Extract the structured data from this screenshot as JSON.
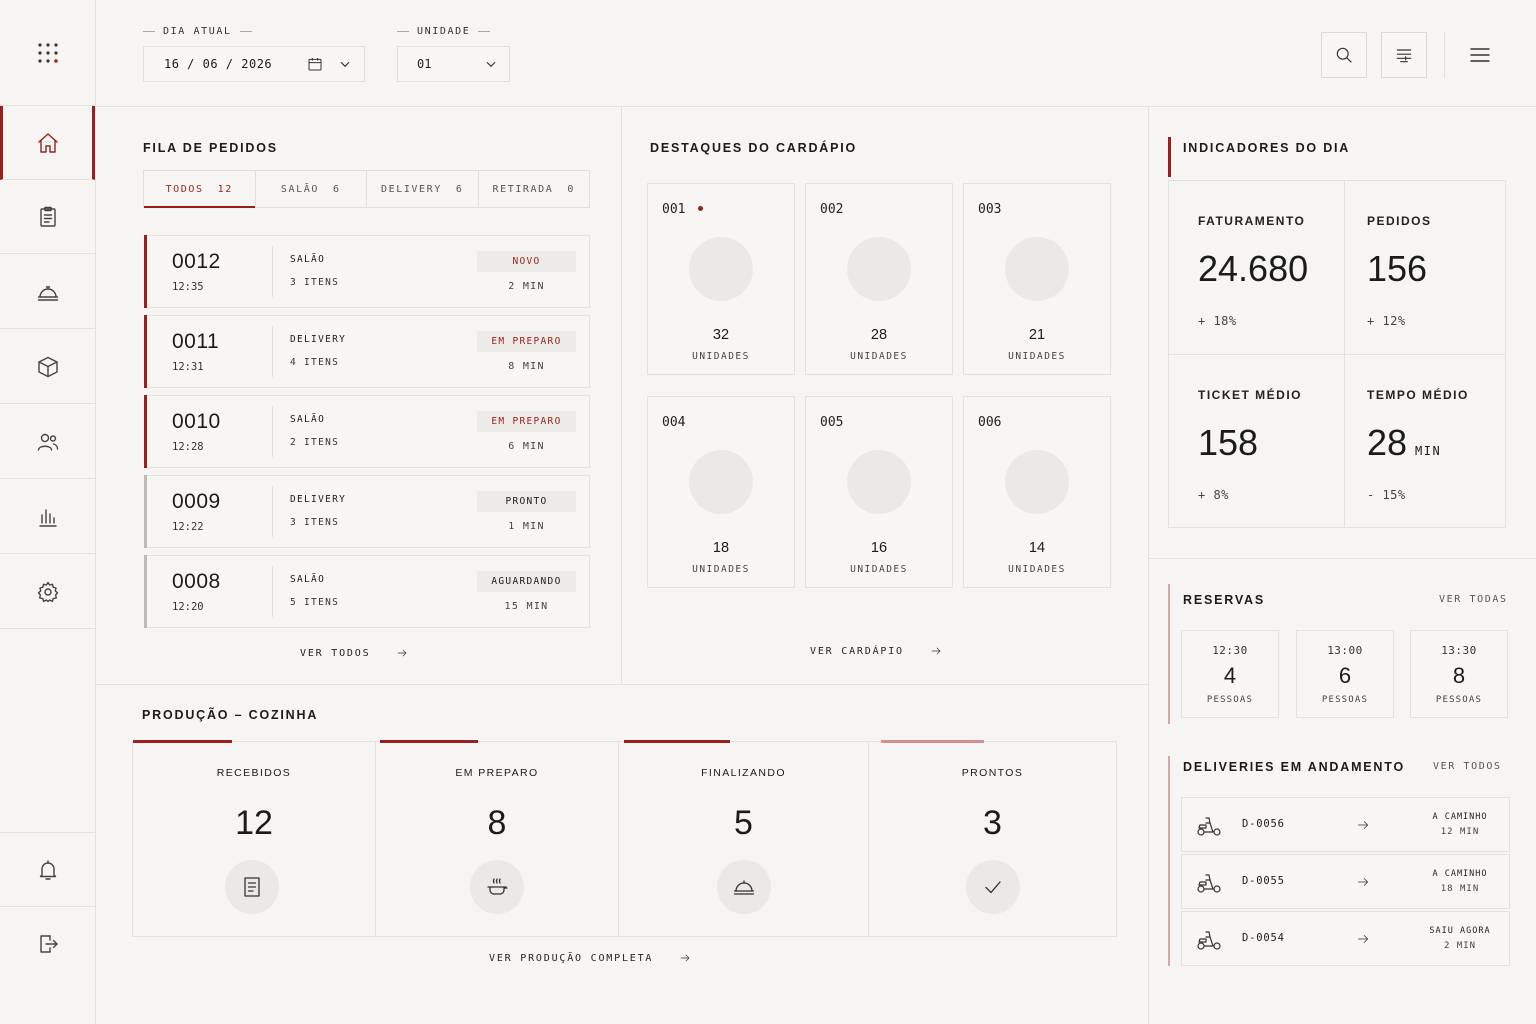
{
  "header": {
    "date_label": "DIA ATUAL",
    "date_value": "16 / 06 / 2026",
    "unit_label": "UNIDADE",
    "unit_value": "01"
  },
  "queue": {
    "title": "FILA DE PEDIDOS",
    "tabs": [
      {
        "label": "TODOS",
        "count": "12"
      },
      {
        "label": "SALÃO",
        "count": "6"
      },
      {
        "label": "DELIVERY",
        "count": "6"
      },
      {
        "label": "RETIRADA",
        "count": "0"
      }
    ],
    "orders": [
      {
        "num": "0012",
        "time": "12:35",
        "type": "SALÃO",
        "items": "3 ITENS",
        "status": "NOVO",
        "mins": "2 MIN"
      },
      {
        "num": "0011",
        "time": "12:31",
        "type": "DELIVERY",
        "items": "4 ITENS",
        "status": "EM PREPARO",
        "mins": "8 MIN"
      },
      {
        "num": "0010",
        "time": "12:28",
        "type": "SALÃO",
        "items": "2 ITENS",
        "status": "EM PREPARO",
        "mins": "6 MIN"
      },
      {
        "num": "0009",
        "time": "12:22",
        "type": "DELIVERY",
        "items": "3 ITENS",
        "status": "PRONTO",
        "mins": "1 MIN"
      },
      {
        "num": "0008",
        "time": "12:20",
        "type": "SALÃO",
        "items": "5 ITENS",
        "status": "AGUARDANDO",
        "mins": "15 MIN"
      }
    ],
    "see_all": "VER TODOS"
  },
  "menu": {
    "title": "DESTAQUES DO CARDÁPIO",
    "dishes": [
      {
        "code": "001",
        "qty": "32",
        "unit": "UNIDADES"
      },
      {
        "code": "002",
        "qty": "28",
        "unit": "UNIDADES"
      },
      {
        "code": "003",
        "qty": "21",
        "unit": "UNIDADES"
      },
      {
        "code": "004",
        "qty": "18",
        "unit": "UNIDADES"
      },
      {
        "code": "005",
        "qty": "16",
        "unit": "UNIDADES"
      },
      {
        "code": "006",
        "qty": "14",
        "unit": "UNIDADES"
      }
    ],
    "see_menu": "VER CARDÁPIO"
  },
  "indicators": {
    "title": "INDICADORES DO DIA",
    "items": [
      {
        "label": "FATURAMENTO",
        "value": "24.680",
        "unit": "",
        "delta": "+ 18%"
      },
      {
        "label": "PEDIDOS",
        "value": "156",
        "unit": "",
        "delta": "+ 12%"
      },
      {
        "label": "TICKET MÉDIO",
        "value": "158",
        "unit": "",
        "delta": "+ 8%"
      },
      {
        "label": "TEMPO MÉDIO",
        "value": "28",
        "unit": "MIN",
        "delta": "- 15%"
      }
    ]
  },
  "reservations": {
    "title": "RESERVAS",
    "see_all": "VER TODAS",
    "items": [
      {
        "time": "12:30",
        "count": "4",
        "label": "PESSOAS"
      },
      {
        "time": "13:00",
        "count": "6",
        "label": "PESSOAS"
      },
      {
        "time": "13:30",
        "count": "8",
        "label": "PESSOAS"
      }
    ]
  },
  "deliveries": {
    "title": "DELIVERIES EM ANDAMENTO",
    "see_all": "VER TODOS",
    "items": [
      {
        "id": "D-0056",
        "status": "A CAMINHO",
        "mins": "12 MIN"
      },
      {
        "id": "D-0055",
        "status": "A CAMINHO",
        "mins": "18 MIN"
      },
      {
        "id": "D-0054",
        "status": "SAIU AGORA",
        "mins": "2 MIN"
      }
    ]
  },
  "production": {
    "title": "PRODUÇÃO – COZINHA",
    "stages": [
      {
        "label": "RECEBIDOS",
        "value": "12",
        "icon": "ticket-icon"
      },
      {
        "label": "EM PREPARO",
        "value": "8",
        "icon": "cooking-pot-icon"
      },
      {
        "label": "FINALIZANDO",
        "value": "5",
        "icon": "cloche-icon"
      },
      {
        "label": "PRONTOS",
        "value": "3",
        "icon": "check-icon"
      }
    ],
    "see_full": "VER PRODUÇÃO COMPLETA"
  },
  "colors": {
    "accent": "#9a1f1f",
    "background": "#f6f5f3",
    "border": "#e4e2de",
    "muted_bar": "#bdbbb7"
  }
}
